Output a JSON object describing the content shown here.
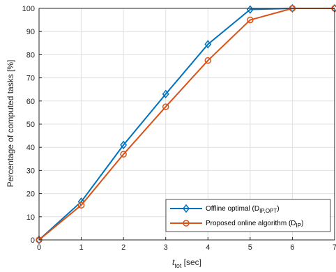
{
  "chart_data": {
    "type": "line",
    "xlabel": {
      "main": "t",
      "sub": "tot",
      "unit": " [sec]"
    },
    "ylabel": "Percentage of computed tasks [%]",
    "xlim": [
      0,
      7
    ],
    "ylim": [
      0,
      100
    ],
    "xticks": [
      0,
      1,
      2,
      3,
      4,
      5,
      6,
      7
    ],
    "yticks": [
      0,
      10,
      20,
      30,
      40,
      50,
      60,
      70,
      80,
      90,
      100
    ],
    "grid": true,
    "legend_position": "bottom-right",
    "x": [
      0,
      1,
      2,
      3,
      4,
      5,
      6,
      7
    ],
    "series": [
      {
        "name": "Offline optimal (D_IP,OPT)",
        "legend": {
          "main": "Offline optimal (D",
          "sub": "IP,OPT",
          "tail": ")"
        },
        "color": "#0072BD",
        "marker": "diamond",
        "values": [
          0,
          16.5,
          41,
          63,
          84.5,
          99.5,
          100,
          100
        ]
      },
      {
        "name": "Proposed online algorithm (D_IP)",
        "legend": {
          "main": "Proposed online algorithm (D",
          "sub": "IP",
          "tail": ")"
        },
        "color": "#D95319",
        "marker": "circle",
        "values": [
          0,
          15,
          37,
          57.5,
          77.5,
          95,
          100,
          100
        ]
      }
    ]
  }
}
